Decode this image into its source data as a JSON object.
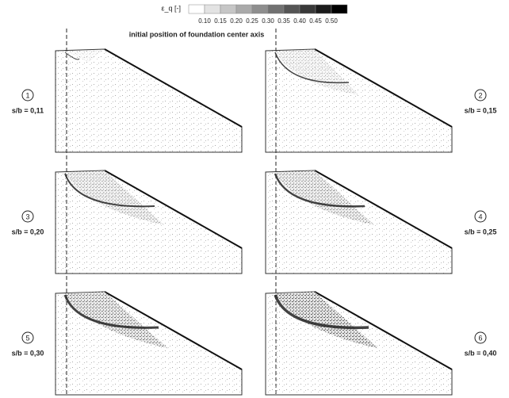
{
  "colorbar": {
    "label": "ε_q [-]",
    "ticks": [
      "0.10",
      "0.15",
      "0.20",
      "0.25",
      "0.30",
      "0.35",
      "0.40",
      "0.45",
      "0.50"
    ]
  },
  "annotation": "initial position of foundation center axis",
  "panels": [
    {
      "number": "1",
      "label": "s/b = 0,11"
    },
    {
      "number": "2",
      "label": "s/b = 0,15"
    },
    {
      "number": "3",
      "label": "s/b = 0,20"
    },
    {
      "number": "4",
      "label": "s/b = 0,25"
    },
    {
      "number": "5",
      "label": "s/b = 0,30"
    },
    {
      "number": "6",
      "label": "s/b = 0,40"
    }
  ]
}
